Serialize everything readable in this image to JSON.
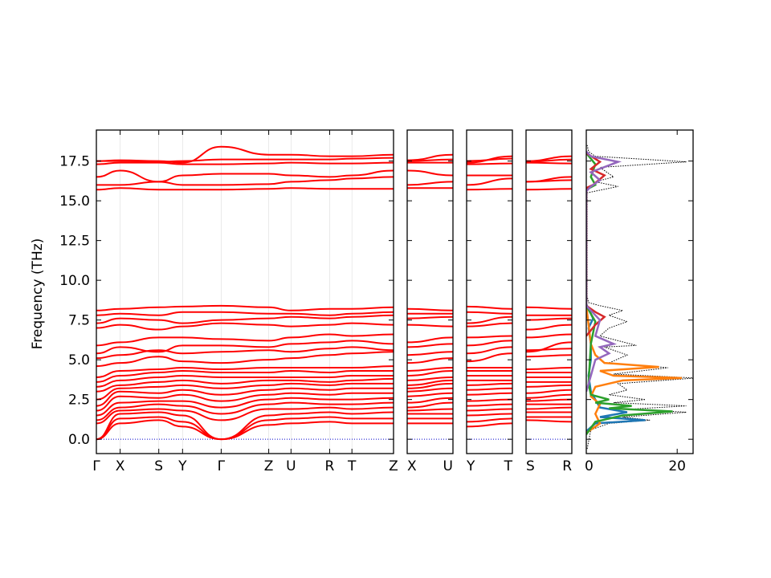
{
  "chart_data": {
    "type": "line",
    "ylabel": "Frequency (THz)",
    "ylim": [
      -0.9,
      19.45
    ],
    "yticks": [
      "0.0",
      "2.5",
      "5.0",
      "7.5",
      "10.0",
      "12.5",
      "15.0",
      "17.5"
    ],
    "ytick_values": [
      0.0,
      2.5,
      5.0,
      7.5,
      10.0,
      12.5,
      15.0,
      17.5
    ],
    "band_color": "#ff0000",
    "zero_line_color": "#0000cc",
    "dos_total_color": "#000000",
    "panels": [
      {
        "labels": [
          "Γ",
          "X",
          "S",
          "Y",
          "Γ",
          "Z",
          "U",
          "R",
          "T",
          "Z"
        ],
        "ticks": [
          0.0,
          0.08,
          0.21,
          0.29,
          0.42,
          0.58,
          0.655,
          0.785,
          0.86,
          1.0
        ]
      },
      {
        "labels": [
          "X",
          "U"
        ],
        "ticks": [
          0.0,
          1.0
        ]
      },
      {
        "labels": [
          "Y",
          "T"
        ],
        "ticks": [
          0.0,
          1.0
        ]
      },
      {
        "labels": [
          "S",
          "R"
        ],
        "ticks": [
          0.0,
          1.0
        ]
      }
    ],
    "bands": {
      "high": [
        [
          15.7,
          15.8,
          15.7,
          15.7,
          15.7,
          15.75,
          15.8,
          15.75,
          15.75,
          15.75
        ],
        [
          16.0,
          16.0,
          16.2,
          16.0,
          16.0,
          16.05,
          16.2,
          16.3,
          16.4,
          16.5
        ],
        [
          16.5,
          16.9,
          16.2,
          16.6,
          16.7,
          16.7,
          16.6,
          16.5,
          16.6,
          16.9
        ],
        [
          17.3,
          17.4,
          17.4,
          17.3,
          17.3,
          17.35,
          17.4,
          17.35,
          17.35,
          17.4
        ],
        [
          17.5,
          17.5,
          17.45,
          17.5,
          17.6,
          17.6,
          17.6,
          17.6,
          17.65,
          17.7
        ],
        [
          17.5,
          17.55,
          17.5,
          17.4,
          18.4,
          17.9,
          17.9,
          17.8,
          17.8,
          17.9
        ]
      ],
      "mid": [
        [
          4.6,
          4.8,
          5.2,
          4.9,
          4.8,
          5.0,
          5.1,
          5.3,
          5.4,
          5.5
        ],
        [
          5.1,
          5.3,
          5.6,
          5.4,
          5.5,
          5.6,
          5.5,
          5.7,
          5.8,
          5.6
        ],
        [
          5.4,
          5.8,
          5.5,
          5.9,
          5.9,
          5.8,
          6.0,
          6.1,
          6.2,
          6.0
        ],
        [
          5.9,
          6.1,
          6.4,
          6.4,
          6.3,
          6.2,
          6.4,
          6.6,
          6.5,
          6.6
        ],
        [
          7.0,
          7.2,
          6.9,
          7.1,
          7.3,
          7.2,
          7.1,
          7.2,
          7.3,
          7.2
        ],
        [
          7.3,
          7.6,
          7.5,
          7.3,
          7.5,
          7.6,
          7.7,
          7.6,
          7.7,
          7.8
        ],
        [
          7.8,
          7.9,
          7.8,
          8.0,
          8.0,
          7.9,
          7.9,
          7.8,
          7.9,
          8.0
        ],
        [
          8.1,
          8.2,
          8.3,
          8.35,
          8.4,
          8.3,
          8.1,
          8.2,
          8.2,
          8.3
        ]
      ],
      "low": [
        [
          0.0,
          1.0,
          1.2,
          0.8,
          0.0,
          0.9,
          1.0,
          1.1,
          1.0,
          1.0
        ],
        [
          0.0,
          1.3,
          1.4,
          1.1,
          0.0,
          1.2,
          1.3,
          1.4,
          1.3,
          1.3
        ],
        [
          0.0,
          1.6,
          1.7,
          1.5,
          0.0,
          1.5,
          1.6,
          1.7,
          1.6,
          1.7
        ],
        [
          1.0,
          1.8,
          1.9,
          1.8,
          1.2,
          1.9,
          1.9,
          2.0,
          1.9,
          2.0
        ],
        [
          1.2,
          2.0,
          2.2,
          2.1,
          1.6,
          2.2,
          2.3,
          2.2,
          2.2,
          2.3
        ],
        [
          1.5,
          2.3,
          2.4,
          2.4,
          2.0,
          2.5,
          2.6,
          2.5,
          2.5,
          2.6
        ],
        [
          1.8,
          2.7,
          2.6,
          2.8,
          2.4,
          2.8,
          2.9,
          2.8,
          2.9,
          2.9
        ],
        [
          2.1,
          3.0,
          2.9,
          3.1,
          2.8,
          3.1,
          3.2,
          3.1,
          3.2,
          3.2
        ],
        [
          2.5,
          3.2,
          3.3,
          3.4,
          3.2,
          3.4,
          3.5,
          3.4,
          3.5,
          3.5
        ],
        [
          3.0,
          3.4,
          3.6,
          3.7,
          3.5,
          3.7,
          3.7,
          3.6,
          3.7,
          3.8
        ],
        [
          3.3,
          3.7,
          3.9,
          4.0,
          3.9,
          3.9,
          3.9,
          3.9,
          4.0,
          4.0
        ],
        [
          3.6,
          4.0,
          4.2,
          4.3,
          4.2,
          4.2,
          4.3,
          4.2,
          4.3,
          4.3
        ],
        [
          3.9,
          4.3,
          4.4,
          4.5,
          4.4,
          4.5,
          4.5,
          4.5,
          4.5,
          4.6
        ]
      ]
    },
    "dos_xticks": [
      "0",
      "20"
    ],
    "dos_xtick_values": [
      0,
      20
    ],
    "dos_xlim": [
      0,
      23.5
    ],
    "dos_series": [
      {
        "color": "#000000",
        "dotted": true,
        "points": [
          [
            0.2,
            -0.6
          ],
          [
            1,
            0.6
          ],
          [
            5,
            1.0
          ],
          [
            14,
            1.2
          ],
          [
            8,
            1.4
          ],
          [
            22,
            1.7
          ],
          [
            10,
            1.9
          ],
          [
            22,
            2.1
          ],
          [
            6,
            2.3
          ],
          [
            13,
            2.5
          ],
          [
            5,
            2.8
          ],
          [
            9,
            3.1
          ],
          [
            7,
            3.5
          ],
          [
            24,
            3.85
          ],
          [
            6,
            4.1
          ],
          [
            18,
            4.5
          ],
          [
            5,
            4.8
          ],
          [
            9,
            5.3
          ],
          [
            4,
            5.8
          ],
          [
            11,
            5.9
          ],
          [
            3,
            6.5
          ],
          [
            5,
            7.0
          ],
          [
            9,
            7.4
          ],
          [
            5,
            7.8
          ],
          [
            8,
            8.1
          ],
          [
            3,
            8.4
          ],
          [
            0.5,
            8.6
          ],
          [
            0.2,
            9.0
          ],
          [
            0.2,
            15.5
          ],
          [
            7,
            15.9
          ],
          [
            2,
            16.2
          ],
          [
            6,
            16.5
          ],
          [
            3,
            17.1
          ],
          [
            22,
            17.45
          ],
          [
            2,
            17.8
          ],
          [
            0.5,
            18.1
          ],
          [
            0.2,
            18.5
          ]
        ]
      },
      {
        "color": "#1f77b4",
        "dotted": false,
        "points": [
          [
            0,
            0.5
          ],
          [
            2,
            1.0
          ],
          [
            13,
            1.2
          ],
          [
            3,
            1.4
          ],
          [
            9,
            1.7
          ],
          [
            3,
            2.0
          ],
          [
            2,
            2.5
          ],
          [
            1,
            3.0
          ],
          [
            0.5,
            4.0
          ],
          [
            1,
            5.0
          ],
          [
            1,
            6.0
          ],
          [
            0.5,
            7.0
          ],
          [
            1.5,
            7.6
          ],
          [
            0,
            8.5
          ]
        ]
      },
      {
        "color": "#ff7f0e",
        "dotted": false,
        "points": [
          [
            0,
            0.4
          ],
          [
            3,
            1.0
          ],
          [
            2,
            1.6
          ],
          [
            3,
            2.2
          ],
          [
            1,
            2.7
          ],
          [
            2,
            3.3
          ],
          [
            8,
            3.7
          ],
          [
            21,
            3.85
          ],
          [
            6,
            4.0
          ],
          [
            3,
            4.3
          ],
          [
            16,
            4.55
          ],
          [
            4,
            4.8
          ],
          [
            2,
            5.3
          ],
          [
            1,
            6.0
          ],
          [
            0,
            8.4
          ]
        ]
      },
      {
        "color": "#2ca02c",
        "dotted": false,
        "points": [
          [
            0,
            0.3
          ],
          [
            2,
            1.1
          ],
          [
            8,
            1.5
          ],
          [
            19,
            1.75
          ],
          [
            5,
            1.95
          ],
          [
            10,
            2.1
          ],
          [
            2,
            2.3
          ],
          [
            5,
            2.5
          ],
          [
            1,
            2.8
          ],
          [
            0.5,
            3.5
          ],
          [
            1,
            6.0
          ],
          [
            2,
            7.4
          ],
          [
            0,
            8.4
          ],
          [
            0,
            15.7
          ],
          [
            2,
            16.0
          ],
          [
            1,
            16.5
          ],
          [
            2,
            17.3
          ],
          [
            0,
            18.0
          ]
        ]
      },
      {
        "color": "#d62728",
        "dotted": false,
        "points": [
          [
            0,
            6.5
          ],
          [
            2,
            7.2
          ],
          [
            4,
            7.7
          ],
          [
            2,
            8.0
          ],
          [
            0,
            8.4
          ],
          [
            0,
            15.8
          ],
          [
            1.5,
            16.0
          ],
          [
            4,
            16.6
          ],
          [
            1,
            17.0
          ],
          [
            3,
            17.45
          ],
          [
            0,
            18.0
          ]
        ]
      },
      {
        "color": "#9467bd",
        "dotted": false,
        "points": [
          [
            0,
            3.0
          ],
          [
            1,
            4.0
          ],
          [
            2,
            5.0
          ],
          [
            5,
            5.4
          ],
          [
            3,
            5.8
          ],
          [
            6,
            6.0
          ],
          [
            2,
            6.5
          ],
          [
            3,
            7.5
          ],
          [
            1,
            8.1
          ],
          [
            0,
            8.4
          ],
          [
            0,
            15.6
          ],
          [
            1,
            15.9
          ],
          [
            3,
            16.3
          ],
          [
            1,
            16.8
          ],
          [
            7,
            17.45
          ],
          [
            1,
            17.8
          ],
          [
            0,
            18.1
          ]
        ]
      }
    ]
  }
}
